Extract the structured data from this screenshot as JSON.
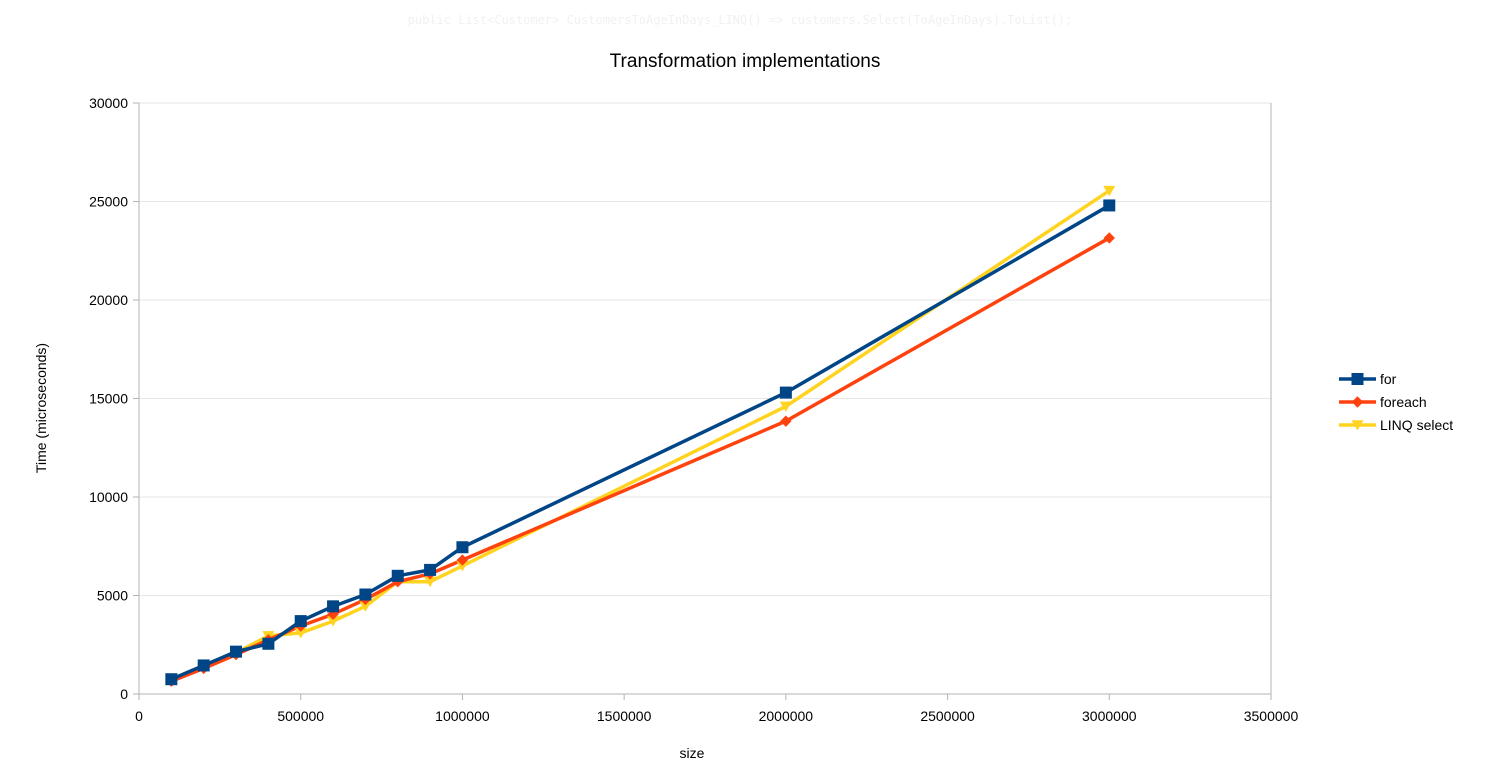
{
  "header_code": "public List<Customer> CustomersToAgeInDays_LINQ() => customers.Select(ToAgeInDays).ToList();",
  "chart_data": {
    "type": "line",
    "title": "Transformation implementations",
    "xlabel": "size",
    "ylabel": "Time (microseconds)",
    "xlim": [
      0,
      3500000
    ],
    "ylim": [
      0,
      30000
    ],
    "xticks": [
      0,
      500000,
      1000000,
      1500000,
      2000000,
      2500000,
      3000000,
      3500000
    ],
    "yticks": [
      0,
      5000,
      10000,
      15000,
      20000,
      25000,
      30000
    ],
    "grid": "horizontal",
    "legend_position": "right",
    "x": [
      100000,
      200000,
      300000,
      400000,
      500000,
      600000,
      700000,
      800000,
      900000,
      1000000,
      2000000,
      3000000
    ],
    "series": [
      {
        "name": "for",
        "color": "#004586",
        "marker": "square",
        "values": [
          750,
          1450,
          2150,
          2550,
          3700,
          4450,
          5050,
          6000,
          6300,
          7450,
          15300,
          24800
        ]
      },
      {
        "name": "foreach",
        "color": "#ff420e",
        "marker": "diamond",
        "values": [
          650,
          1300,
          2000,
          2750,
          3450,
          4050,
          4800,
          5700,
          6100,
          6800,
          13850,
          23150
        ]
      },
      {
        "name": "LINQ select",
        "color": "#ffd320",
        "marker": "triangle-down",
        "values": [
          700,
          1400,
          2100,
          2950,
          3100,
          3700,
          4450,
          5700,
          5700,
          6500,
          14600,
          25550
        ]
      }
    ]
  }
}
